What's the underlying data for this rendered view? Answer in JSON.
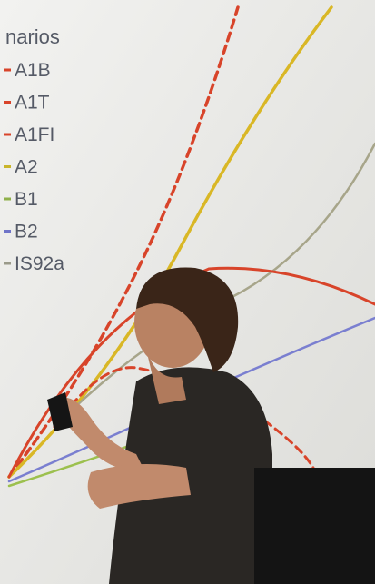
{
  "slide": {
    "title": "narios",
    "legend": [
      {
        "label": "A1B",
        "color": "#d8442a"
      },
      {
        "label": "A1T",
        "color": "#d8442a"
      },
      {
        "label": "A1FI",
        "color": "#d8442a"
      },
      {
        "label": "A2",
        "color": "#c9b52a"
      },
      {
        "label": "B1",
        "color": "#8fb04a"
      },
      {
        "label": "B2",
        "color": "#6f74c8"
      },
      {
        "label": "IS92a",
        "color": "#9a9a8a"
      }
    ]
  }
}
